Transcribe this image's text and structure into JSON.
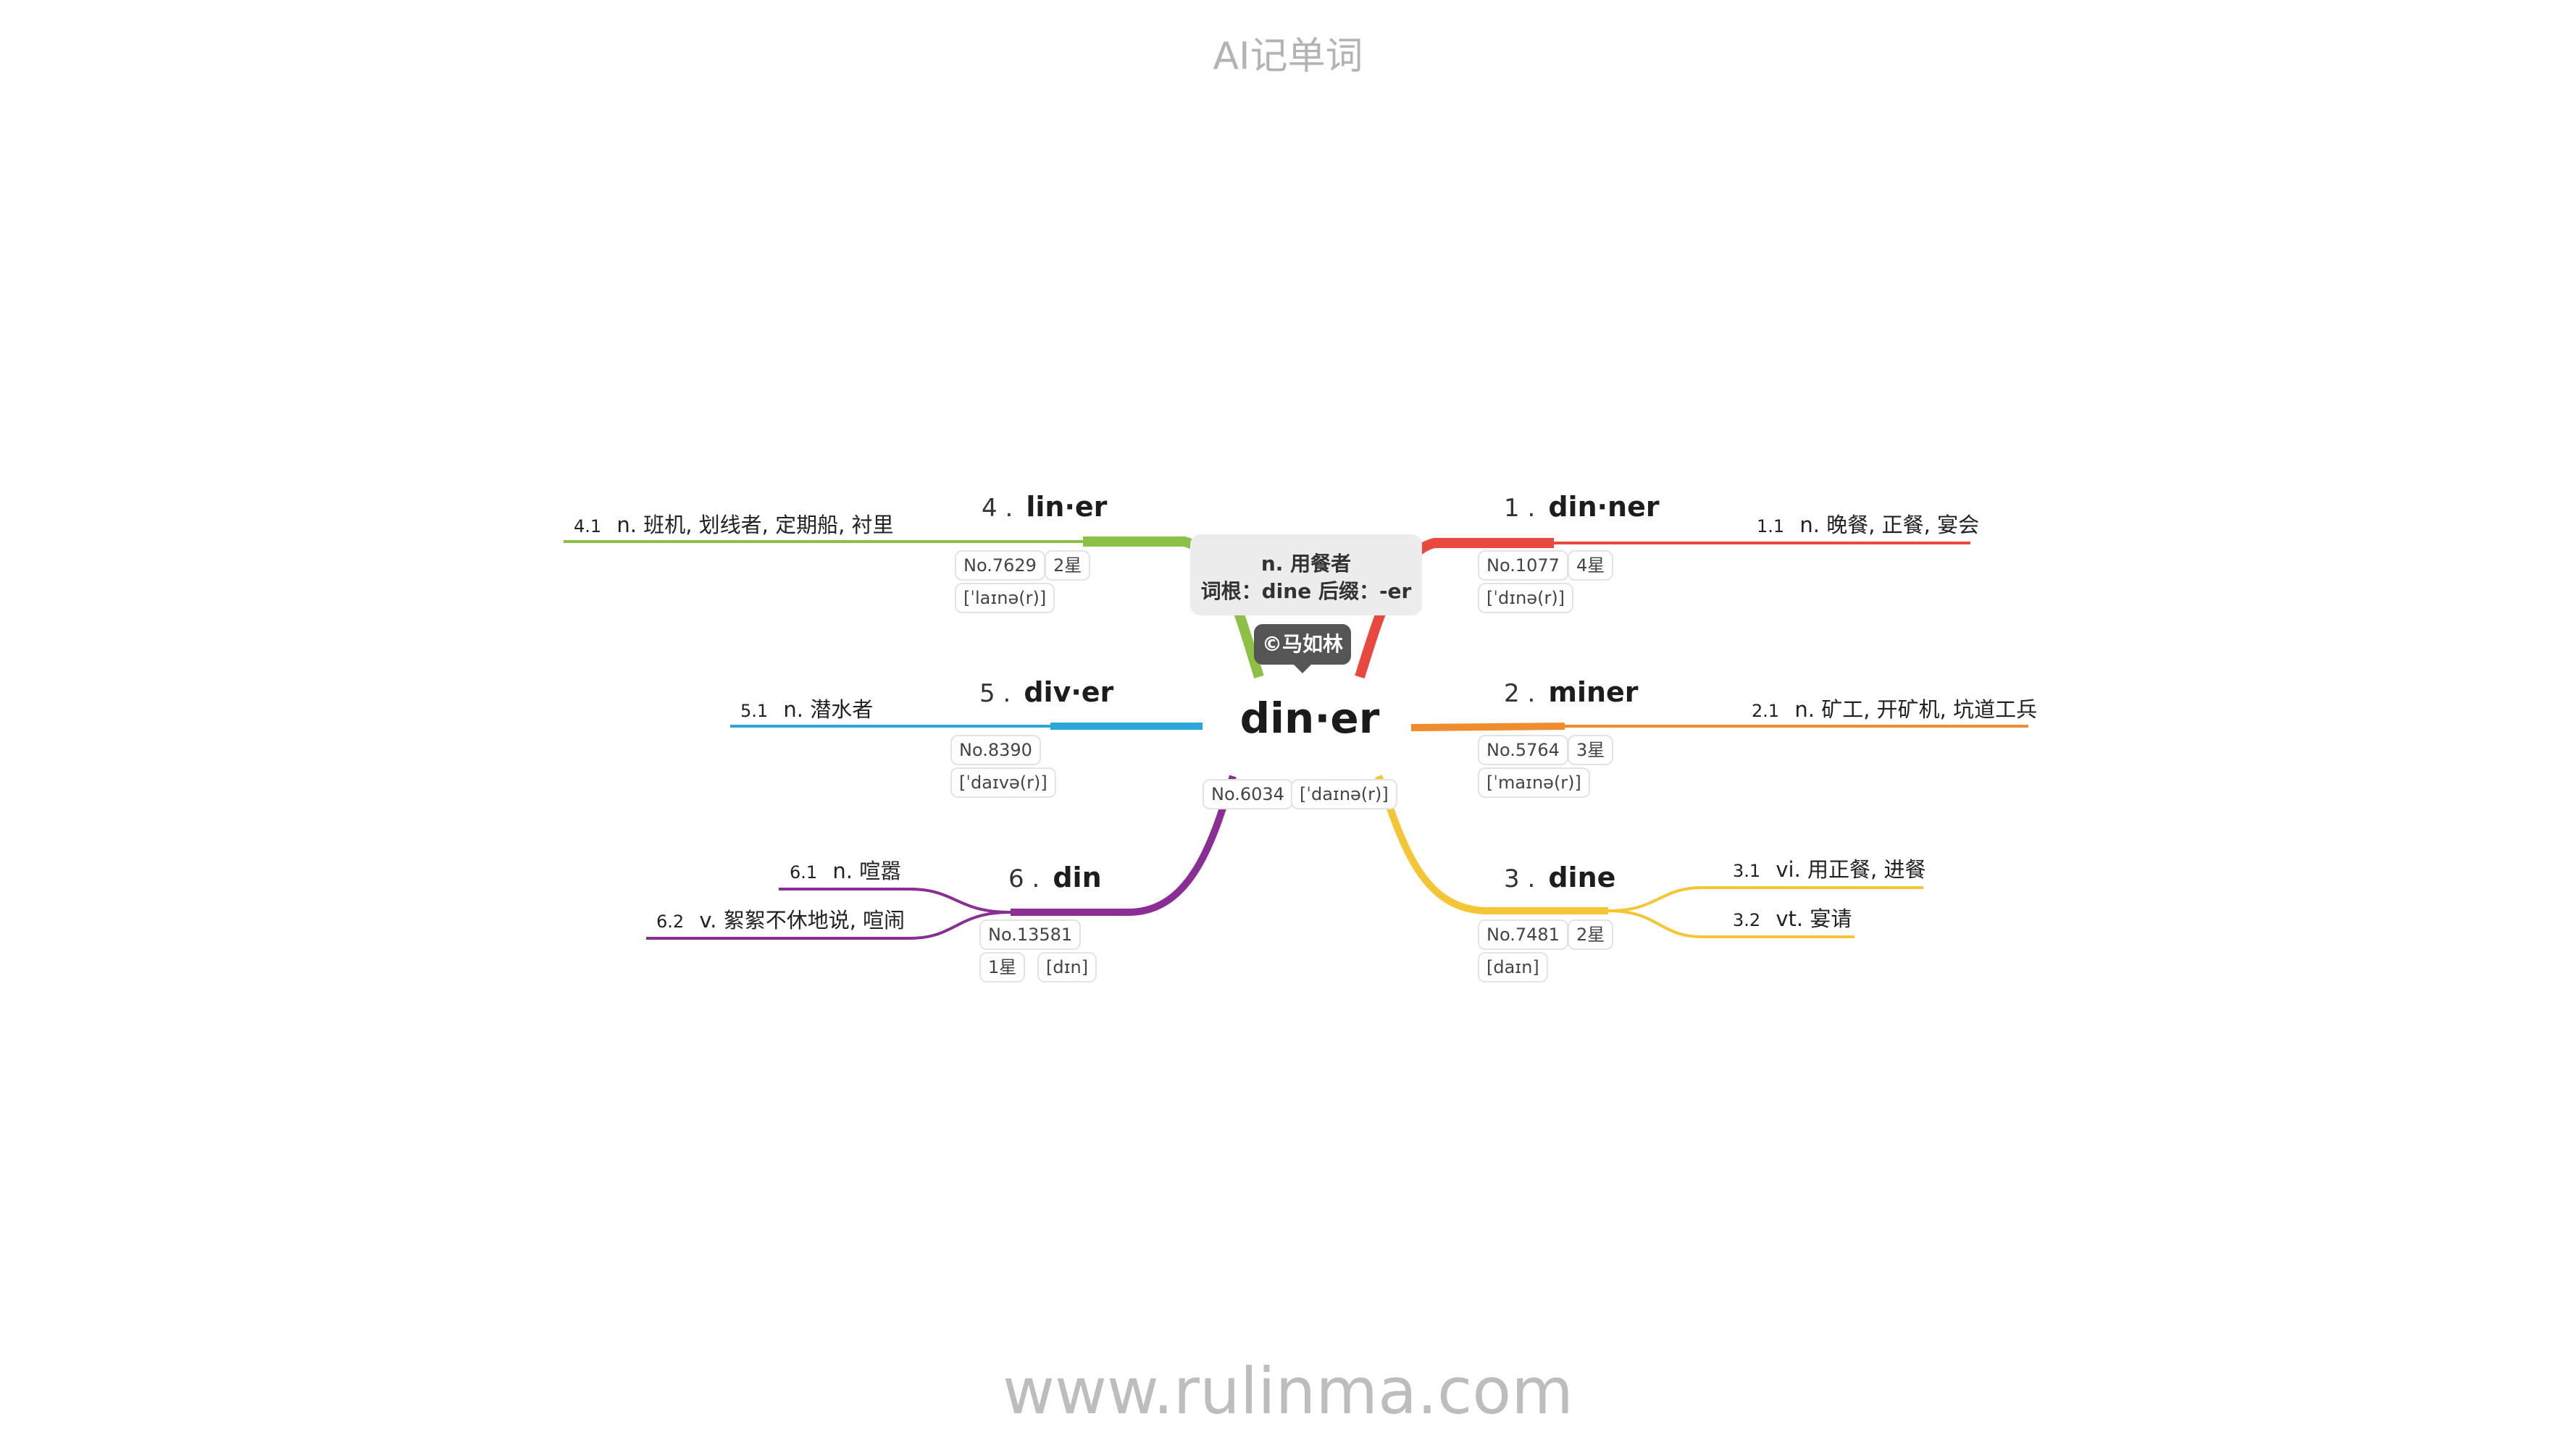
{
  "header": "AI记单词",
  "footer": "www.rulinma.com",
  "center": {
    "word": "din·er",
    "rank": "No.6034",
    "phonetic": "[ˈdaɪnə(r)]",
    "note_meaning": "n. 用餐者",
    "note_etymology": "词根：dine 后缀：-er",
    "copyright": "©马如林"
  },
  "colors": {
    "b1": "#e8483d",
    "b2": "#f08c2e",
    "b3": "#f4c534",
    "b4": "#8dc146",
    "b5": "#2aa7d8",
    "b6": "#8a2e96"
  },
  "branches": [
    {
      "num": "1 .",
      "word": "din·ner",
      "rank": "No.1077",
      "stars": "4星",
      "phonetic": "[ˈdɪnə(r)]",
      "defs": [
        {
          "num": "1.1",
          "text": "n. 晚餐, 正餐, 宴会"
        }
      ]
    },
    {
      "num": "2 .",
      "word": "miner",
      "rank": "No.5764",
      "stars": "3星",
      "phonetic": "[ˈmaɪnə(r)]",
      "defs": [
        {
          "num": "2.1",
          "text": "n. 矿工, 开矿机, 坑道工兵"
        }
      ]
    },
    {
      "num": "3 .",
      "word": "dine",
      "rank": "No.7481",
      "stars": "2星",
      "phonetic": "[daɪn]",
      "defs": [
        {
          "num": "3.1",
          "text": "vi. 用正餐, 进餐"
        },
        {
          "num": "3.2",
          "text": "vt. 宴请"
        }
      ]
    },
    {
      "num": "4 .",
      "word": "lin·er",
      "rank": "No.7629",
      "stars": "2星",
      "phonetic": "[ˈlaɪnə(r)]",
      "defs": [
        {
          "num": "4.1",
          "text": "n. 班机, 划线者, 定期船, 衬里"
        }
      ]
    },
    {
      "num": "5 .",
      "word": "div·er",
      "rank": "No.8390",
      "phonetic": "[ˈdaɪvə(r)]",
      "defs": [
        {
          "num": "5.1",
          "text": "n. 潜水者"
        }
      ]
    },
    {
      "num": "6 .",
      "word": "din",
      "rank": "No.13581",
      "stars": "1星",
      "phonetic": "[dɪn]",
      "defs": [
        {
          "num": "6.1",
          "text": "n. 喧嚣"
        },
        {
          "num": "6.2",
          "text": "v. 絮絮不休地说, 喧闹"
        }
      ]
    }
  ]
}
